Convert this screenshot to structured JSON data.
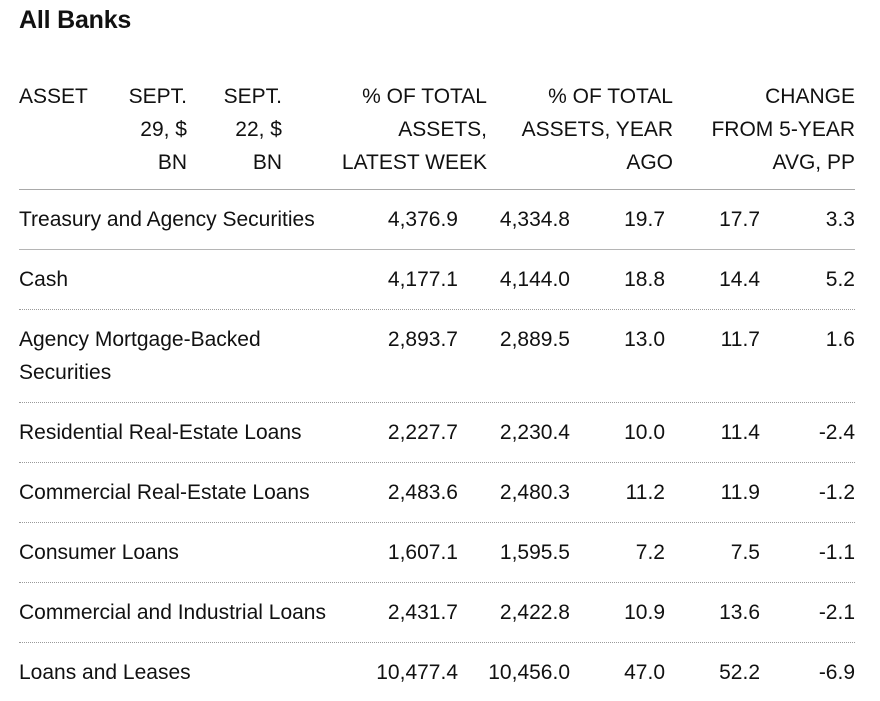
{
  "chart_data": {
    "type": "table",
    "title": "All Banks",
    "columns": [
      [
        "ASSET"
      ],
      [
        "SEPT.",
        "29, $",
        "BN"
      ],
      [
        "SEPT.",
        "22, $",
        "BN"
      ],
      [
        "% OF TOTAL",
        "ASSETS,",
        "LATEST WEEK"
      ],
      [
        "% OF TOTAL",
        "ASSETS, YEAR",
        "AGO"
      ],
      [
        "CHANGE",
        "FROM 5-YEAR",
        "AVG, PP"
      ]
    ],
    "rows": [
      {
        "asset": "Treasury and Agency Securities",
        "sept29": "4,376.9",
        "sept22": "4,334.8",
        "pct_latest": "19.7",
        "pct_year_ago": "17.7",
        "change": "3.3"
      },
      {
        "asset": "Cash",
        "sept29": "4,177.1",
        "sept22": "4,144.0",
        "pct_latest": "18.8",
        "pct_year_ago": "14.4",
        "change": "5.2"
      },
      {
        "asset": "Agency Mortgage-Backed Securities",
        "sept29": "2,893.7",
        "sept22": "2,889.5",
        "pct_latest": "13.0",
        "pct_year_ago": "11.7",
        "change": "1.6"
      },
      {
        "asset": "Residential Real-Estate Loans",
        "sept29": "2,227.7",
        "sept22": "2,230.4",
        "pct_latest": "10.0",
        "pct_year_ago": "11.4",
        "change": "-2.4"
      },
      {
        "asset": "Commercial Real-Estate Loans",
        "sept29": "2,483.6",
        "sept22": "2,480.3",
        "pct_latest": "11.2",
        "pct_year_ago": "11.9",
        "change": "-1.2"
      },
      {
        "asset": "Consumer Loans",
        "sept29": "1,607.1",
        "sept22": "1,595.5",
        "pct_latest": "7.2",
        "pct_year_ago": "7.5",
        "change": "-1.1"
      },
      {
        "asset": "Commercial and Industrial Loans",
        "sept29": "2,431.7",
        "sept22": "2,422.8",
        "pct_latest": "10.9",
        "pct_year_ago": "13.6",
        "change": "-2.1"
      },
      {
        "asset": "Loans and Leases",
        "sept29": "10,477.4",
        "sept22": "10,456.0",
        "pct_latest": "47.0",
        "pct_year_ago": "52.2",
        "change": "-6.9"
      }
    ]
  }
}
